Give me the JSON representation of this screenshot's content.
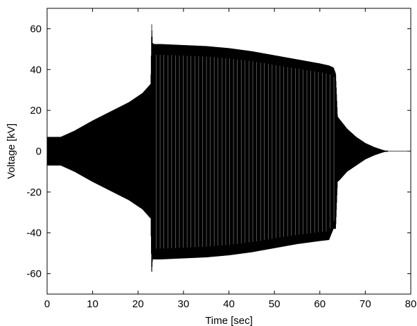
{
  "chart_data": {
    "type": "line",
    "title": "",
    "xlabel": "Time [sec]",
    "ylabel": "Voltage [kV]",
    "xlim": [
      0,
      80
    ],
    "ylim": [
      -70,
      70
    ],
    "xticks": [
      0,
      10,
      20,
      30,
      40,
      50,
      60,
      70,
      80
    ],
    "yticks": [
      -60,
      -40,
      -20,
      0,
      20,
      40,
      60
    ],
    "grid": false,
    "legend": "none",
    "line_color": "#000000",
    "series": [
      {
        "style": "oscillating waveform envelope",
        "upper_envelope": {
          "x": [
            0,
            3,
            6,
            10,
            14,
            18,
            21,
            22.8,
            23.0,
            23.2,
            23.5,
            25,
            30,
            35,
            40,
            45,
            50,
            55,
            60,
            62,
            63,
            63.5,
            63.9,
            64.4,
            66,
            68,
            70,
            72,
            74,
            75,
            80
          ],
          "y": [
            7,
            7,
            10,
            15,
            19.5,
            24,
            28.5,
            33,
            63,
            53,
            52.5,
            52.5,
            52,
            51.5,
            50.5,
            49,
            47,
            45,
            43,
            42,
            41,
            38,
            17,
            15.5,
            11,
            7,
            4,
            2,
            0.5,
            0,
            0
          ]
        },
        "lower_envelope": {
          "x": [
            0,
            3,
            6,
            10,
            14,
            18,
            21,
            22.8,
            23.0,
            23.2,
            23.5,
            25,
            30,
            35,
            40,
            45,
            50,
            55,
            60,
            62,
            63,
            63.5,
            63.9,
            64.4,
            66,
            68,
            70,
            72,
            74,
            75,
            80
          ],
          "y": [
            -7,
            -7,
            -10,
            -15,
            -19.5,
            -24,
            -28.5,
            -33,
            -61,
            -53,
            -53,
            -53,
            -52.5,
            -52,
            -51,
            -49.5,
            -47.5,
            -45.5,
            -44,
            -43.5,
            -38,
            -38,
            -15,
            -14,
            -10,
            -7,
            -4,
            -2,
            -0.5,
            0,
            0
          ]
        }
      }
    ]
  }
}
